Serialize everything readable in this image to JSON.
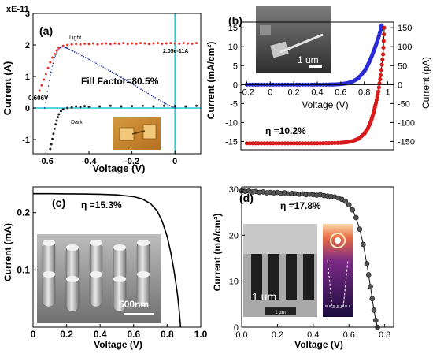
{
  "chart_data": [
    {
      "panel": "(a)",
      "type": "scatter",
      "multiplier_label": "xE-11",
      "xlabel": "Voltage (V)",
      "ylabel": "Current (A)",
      "xlim": [
        -0.66,
        0.12
      ],
      "ylim": [
        -1.45,
        3.0
      ],
      "xticks": [
        "-0.6",
        "-0.4",
        "-0.2",
        "0"
      ],
      "xtick_values": [
        -0.6,
        -0.4,
        -0.2,
        0
      ],
      "yticks": [
        "-1",
        "0",
        "1",
        "2",
        "3"
      ],
      "ytick_values": [
        -1,
        0,
        1,
        2,
        3
      ],
      "annotations": {
        "light": "Light",
        "dark": "Dark",
        "isc": "2.05e-11A",
        "voc": "0.606V",
        "fill_factor": "Fill Factor=80.5%"
      },
      "series": [
        {
          "name": "Light",
          "color": "#e8302a",
          "x": [
            -0.63,
            -0.62,
            -0.61,
            -0.6,
            -0.59,
            -0.58,
            -0.57,
            -0.56,
            -0.55,
            -0.54,
            -0.52,
            -0.5,
            -0.48,
            -0.46,
            -0.44,
            -0.42,
            -0.4,
            -0.38,
            -0.36,
            -0.34,
            -0.32,
            -0.3,
            -0.28,
            -0.26,
            -0.24,
            -0.22,
            -0.2,
            -0.18,
            -0.16,
            -0.14,
            -0.12,
            -0.1,
            -0.08,
            -0.06,
            -0.04,
            -0.02,
            0.0,
            0.02,
            0.04,
            0.06,
            0.08,
            0.1
          ],
          "y": [
            0.55,
            0.72,
            0.9,
            1.08,
            1.27,
            1.45,
            1.6,
            1.72,
            1.82,
            1.9,
            1.97,
            2.0,
            2.02,
            2.03,
            2.02,
            2.04,
            2.03,
            2.05,
            2.02,
            2.04,
            2.05,
            2.03,
            2.05,
            2.04,
            2.06,
            2.03,
            2.05,
            2.04,
            2.06,
            2.05,
            2.03,
            2.05,
            2.06,
            2.04,
            2.05,
            2.06,
            2.05,
            2.04,
            2.06,
            2.05,
            2.04,
            2.06
          ]
        },
        {
          "name": "Dark",
          "color": "#222222",
          "x": [
            -0.58,
            -0.575,
            -0.57,
            -0.565,
            -0.56,
            -0.555,
            -0.55,
            -0.545,
            -0.54,
            -0.53,
            -0.52,
            -0.5,
            -0.48,
            -0.46,
            -0.44,
            -0.42,
            -0.4,
            -0.35,
            -0.3,
            -0.25,
            -0.2,
            -0.15,
            -0.1,
            -0.05,
            0.0,
            0.05,
            0.1
          ],
          "y": [
            -1.3,
            -1.15,
            -0.98,
            -0.82,
            -0.66,
            -0.52,
            -0.4,
            -0.29,
            -0.2,
            -0.1,
            -0.04,
            0.0,
            0.02,
            0.05,
            0.03,
            0.06,
            0.04,
            0.05,
            0.07,
            0.05,
            0.06,
            0.07,
            0.05,
            0.07,
            0.06,
            0.05,
            0.07
          ]
        },
        {
          "name": "Fit",
          "color": "#1d2a9b",
          "x": [
            -0.606,
            -0.58,
            -0.56,
            -0.54,
            -0.52,
            -0.5,
            -0.45,
            -0.4,
            -0.35,
            -0.3,
            -0.25,
            -0.2,
            -0.15,
            -0.1,
            -0.05,
            0.0
          ],
          "y": [
            0.0,
            1.05,
            1.6,
            1.9,
            1.95,
            1.89,
            1.72,
            1.54,
            1.36,
            1.17,
            0.97,
            0.77,
            0.56,
            0.36,
            0.16,
            0.0
          ]
        }
      ],
      "inset_image": "device micrograph"
    },
    {
      "panel": "(b)",
      "type": "line",
      "xlabel": "Voltage (V)",
      "ylabel": "Current (mA/cm²)",
      "ylabel_right": "Current (pA)",
      "xlim": [
        -0.25,
        1.05
      ],
      "ylim": [
        -17.2,
        16.5
      ],
      "ylim_right": [
        -172,
        165
      ],
      "xticks": [
        "-0.2",
        "0",
        "0.2",
        "0.4",
        "0.6",
        "0.8",
        "1"
      ],
      "xtick_values": [
        -0.2,
        0,
        0.2,
        0.4,
        0.6,
        0.8,
        1.0
      ],
      "yticks": [
        "-15",
        "-10",
        "-5",
        "0",
        "5",
        "10",
        "15"
      ],
      "ytick_values": [
        -15,
        -10,
        -5,
        0,
        5,
        10,
        15
      ],
      "yticks_right": [
        "-150",
        "-100",
        "-50",
        "0",
        "50",
        "100",
        "150"
      ],
      "ytick_values_right": [
        -150,
        -100,
        -50,
        0,
        50,
        100,
        150
      ],
      "efficiency": "η =10.2%",
      "inset_scale": "1 um",
      "series": [
        {
          "name": "Blue (pA)",
          "color": "#2b2bd6",
          "axis": "right",
          "x": [
            -0.2,
            -0.1,
            0.0,
            0.1,
            0.2,
            0.3,
            0.4,
            0.5,
            0.55,
            0.6,
            0.65,
            0.7,
            0.75,
            0.8,
            0.82,
            0.84,
            0.86,
            0.88,
            0.9,
            0.92,
            0.94,
            0.95
          ],
          "y": [
            0,
            0,
            0,
            0,
            0,
            0,
            0,
            0.2,
            0.5,
            1.5,
            3.5,
            8,
            17,
            35,
            45,
            58,
            72,
            88,
            105,
            123,
            145,
            160
          ]
        },
        {
          "name": "Red (mA/cm²)",
          "color": "#d71a1a",
          "axis": "left",
          "x": [
            -0.2,
            -0.1,
            0.0,
            0.1,
            0.2,
            0.3,
            0.4,
            0.5,
            0.6,
            0.65,
            0.7,
            0.75,
            0.8,
            0.83,
            0.86,
            0.88,
            0.9,
            0.92,
            0.94,
            0.96,
            0.97
          ],
          "y": [
            -15.5,
            -15.5,
            -15.5,
            -15.5,
            -15.5,
            -15.5,
            -15.5,
            -15.45,
            -15.35,
            -15.2,
            -14.9,
            -14.3,
            -13.0,
            -11.6,
            -9.4,
            -7.3,
            -4.8,
            -1.8,
            2.5,
            8.0,
            15.0
          ]
        }
      ]
    },
    {
      "panel": "(c)",
      "type": "line",
      "xlabel": "Voltage (V)",
      "ylabel": "Current (mA)",
      "xlim": [
        0,
        1.0
      ],
      "ylim": [
        0,
        0.245
      ],
      "xticks": [
        "0",
        "0.2",
        "0.4",
        "0.6",
        "0.8",
        "1.0"
      ],
      "xtick_values": [
        0,
        0.2,
        0.4,
        0.6,
        0.8,
        1.0
      ],
      "yticks": [
        "0.1",
        "0.2"
      ],
      "ytick_values": [
        0.1,
        0.2
      ],
      "efficiency": "η =15.3%",
      "inset_scale": "500nm",
      "series": [
        {
          "name": "J-V",
          "color": "#000000",
          "x": [
            0.0,
            0.1,
            0.2,
            0.3,
            0.4,
            0.5,
            0.6,
            0.65,
            0.7,
            0.74,
            0.77,
            0.8,
            0.82,
            0.84,
            0.86,
            0.87,
            0.88
          ],
          "y": [
            0.233,
            0.233,
            0.2328,
            0.2325,
            0.232,
            0.231,
            0.228,
            0.224,
            0.216,
            0.203,
            0.185,
            0.158,
            0.132,
            0.1,
            0.06,
            0.034,
            0.0
          ]
        }
      ]
    },
    {
      "panel": "(d)",
      "type": "scatter",
      "xlabel": "Voltage (V)",
      "ylabel": "Current (mA/cm²)",
      "xlim": [
        0,
        0.85
      ],
      "ylim": [
        0,
        30.5
      ],
      "xticks": [
        "0.0",
        "0.2",
        "0.4",
        "0.6",
        "0.8"
      ],
      "xtick_values": [
        0,
        0.2,
        0.4,
        0.6,
        0.8
      ],
      "yticks": [
        "0",
        "10",
        "20",
        "30"
      ],
      "ytick_values": [
        0,
        10,
        20,
        30
      ],
      "efficiency": "η =17.8%",
      "inset_scale": "1 um",
      "inset_scale_small": "1 µm",
      "series": [
        {
          "name": "J-V",
          "color": "#555555",
          "x": [
            0.0,
            0.02,
            0.04,
            0.06,
            0.08,
            0.1,
            0.12,
            0.14,
            0.16,
            0.18,
            0.2,
            0.22,
            0.24,
            0.26,
            0.28,
            0.3,
            0.32,
            0.34,
            0.36,
            0.38,
            0.4,
            0.42,
            0.44,
            0.46,
            0.48,
            0.5,
            0.52,
            0.54,
            0.56,
            0.58,
            0.6,
            0.62,
            0.64,
            0.66,
            0.68,
            0.7,
            0.71,
            0.72,
            0.73,
            0.74,
            0.75,
            0.76
          ],
          "y": [
            29.6,
            29.5,
            29.6,
            29.4,
            29.5,
            29.3,
            29.4,
            29.2,
            29.3,
            29.2,
            29.3,
            29.1,
            29.2,
            29.0,
            29.1,
            29.0,
            28.9,
            29.0,
            28.8,
            28.9,
            28.8,
            28.7,
            28.8,
            28.6,
            28.5,
            28.4,
            28.3,
            28.1,
            27.8,
            27.4,
            26.6,
            25.5,
            23.8,
            21.3,
            18.0,
            13.8,
            11.4,
            8.8,
            6.2,
            3.7,
            1.5,
            0.0
          ]
        }
      ]
    }
  ]
}
